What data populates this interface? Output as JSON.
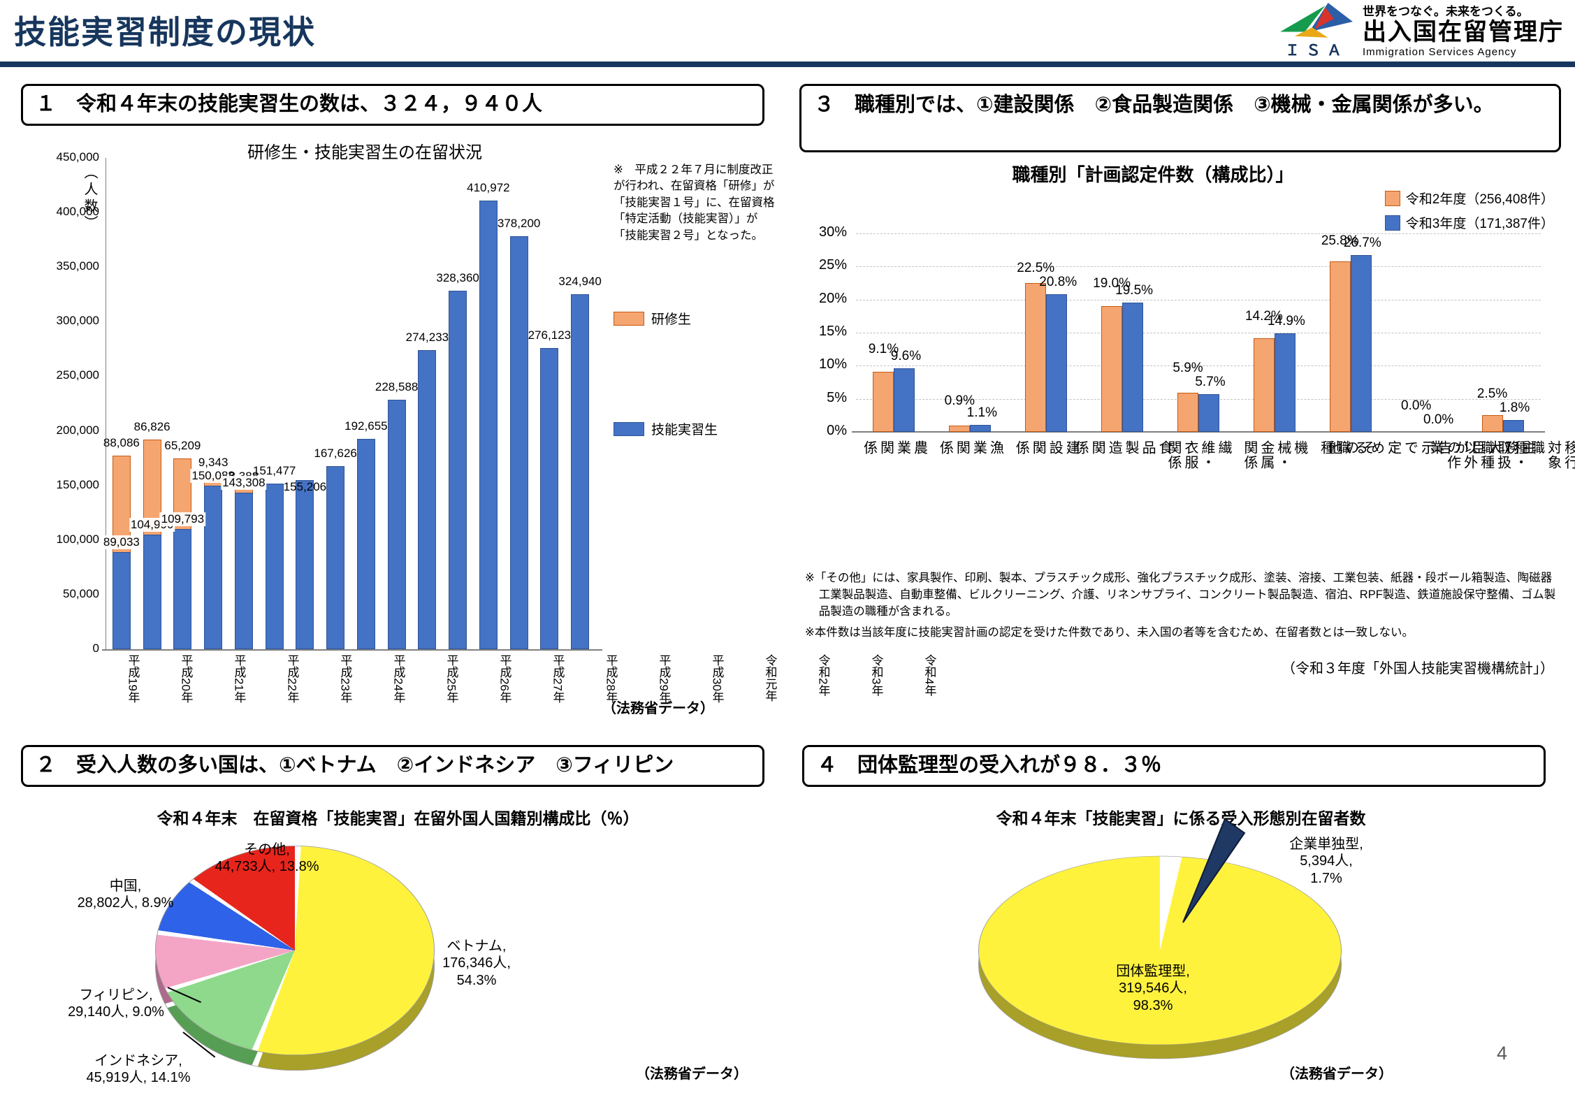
{
  "header": {
    "title": "技能実習制度の現状",
    "logo": {
      "isa": "ＩＳＡ",
      "tagline": "世界をつなぐ。未来をつくる。",
      "agency_jp": "出入国在留管理庁",
      "agency_en": "Immigration Services Agency"
    }
  },
  "page_number": "4",
  "section1": {
    "heading": "１　令和４年末の技能実習生の数は、３２４，９４０人",
    "note": "※　平成２２年７月に制度改正が行われ、在留資格「研修」が「技能実習１号」に、在留資格「特定活動（技能実習）」が「技能実習２号」となった。",
    "source": "（法務省データ）"
  },
  "section2": {
    "heading": "２　受入人数の多い国は、①ベトナム　②インドネシア　③フィリピン",
    "source": "（法務省データ）"
  },
  "section3": {
    "heading": "３　職種別では、①建設関係　②食品製造関係　③機械・金属関係が多い。",
    "notes": [
      "※「その他」には、家具製作、印刷、製本、プラスチック成形、強化プラスチック成形、塗装、溶接、工業包装、紙器・段ボール箱製造、陶磁器工業製品製造、自動車整備、ビルクリーニング、介護、リネンサプライ、コンクリート製品製造、宿泊、RPF製造、鉄道施設保守整備、ゴム製品製造の職種が含まれる。",
      "※本件数は当該年度に技能実習計画の認定を受けた件数であり、未入国の者等を含むため、在留者数とは一致しない。"
    ],
    "source": "（令和３年度「外国人技能実習機構統計」）"
  },
  "section4": {
    "heading": "４　団体監理型の受入れが９８．３％",
    "source": "（法務省データ）"
  },
  "chart_data": [
    {
      "id": "residence_trend",
      "type": "bar",
      "stacked": true,
      "title": "研修生・技能実習生の在留状況",
      "ylabel": "（人数）",
      "ylim": [
        0,
        450000
      ],
      "ytick_step": 50000,
      "grid": false,
      "categories": [
        "平成19年",
        "平成20年",
        "平成21年",
        "平成22年",
        "平成23年",
        "平成24年",
        "平成25年",
        "平成26年",
        "平成27年",
        "平成28年",
        "平成29年",
        "平成30年",
        "令和元年",
        "令和2年",
        "令和3年",
        "令和4年"
      ],
      "series": [
        {
          "name": "研修生",
          "color": "#F5A570",
          "border": "#C55A11",
          "values": [
            88086,
            86826,
            65209,
            9343,
            3388,
            0,
            0,
            0,
            0,
            0,
            0,
            0,
            0,
            0,
            0,
            0
          ]
        },
        {
          "name": "技能実習生",
          "color": "#4472C4",
          "border": "#2F5597",
          "values": [
            89033,
            104990,
            109793,
            150088,
            143308,
            151477,
            155206,
            167626,
            192655,
            228588,
            274233,
            328360,
            410972,
            378200,
            276123,
            324940
          ]
        }
      ]
    },
    {
      "id": "job_category",
      "type": "bar",
      "stacked": false,
      "title": "職種別「計画認定件数（構成比）」",
      "ylim": [
        0,
        30
      ],
      "ytick_step": 5,
      "grid": true,
      "legend_position": "top-right",
      "categories": [
        "農業関係",
        "漁業関係",
        "建設関係",
        "食品製造関係",
        "繊維・衣服関係",
        "機械・金属関係",
        "その他",
        "主務大臣が告示で定める職種",
        "移行対象職種・取扱職種以外の作業"
      ],
      "series": [
        {
          "name": "令和2年度（256,408件）",
          "color": "#F5A570",
          "border": "#C55A11",
          "values": [
            9.1,
            0.9,
            22.5,
            19.0,
            5.9,
            14.2,
            25.8,
            0.0,
            2.5
          ]
        },
        {
          "name": "令和3年度（171,387件）",
          "color": "#4472C4",
          "border": "#2F5597",
          "values": [
            9.6,
            1.1,
            20.8,
            19.5,
            5.7,
            14.9,
            26.7,
            0.0,
            1.8
          ]
        }
      ]
    },
    {
      "id": "nationality_pie",
      "type": "pie",
      "title": "令和４年末　在留資格「技能実習」在留外国人国籍別構成比（％）",
      "slices": [
        {
          "label": "ベトナム",
          "value_text": "176,346人",
          "pct": 54.3,
          "color": "#FFF23D",
          "dark": "#A8A028"
        },
        {
          "label": "インドネシア",
          "value_text": "45,919人",
          "pct": 14.1,
          "color": "#8ED98B",
          "dark": "#569E54"
        },
        {
          "label": "フィリピン",
          "value_text": "29,140人",
          "pct": 9.0,
          "color": "#F4A5C6",
          "dark": "#AE6A8B"
        },
        {
          "label": "中国",
          "value_text": "28,802人",
          "pct": 8.9,
          "color": "#2E62E8",
          "dark": "#1C3E9E"
        },
        {
          "label": "その他",
          "value_text": "44,733人",
          "pct": 13.8,
          "color": "#E8251C",
          "dark": "#9C1511"
        }
      ]
    },
    {
      "id": "acceptance_pie",
      "type": "pie",
      "title": "令和４年末「技能実習」に係る受入形態別在留者数",
      "slices": [
        {
          "label": "団体監理型",
          "value_text": "319,546人",
          "pct": 98.3,
          "color": "#FFF23D",
          "dark": "#A8A028"
        },
        {
          "label": "企業単独型",
          "value_text": "5,394人",
          "pct": 1.7,
          "color": "#1F3864",
          "dark": "#101E38"
        }
      ]
    }
  ]
}
